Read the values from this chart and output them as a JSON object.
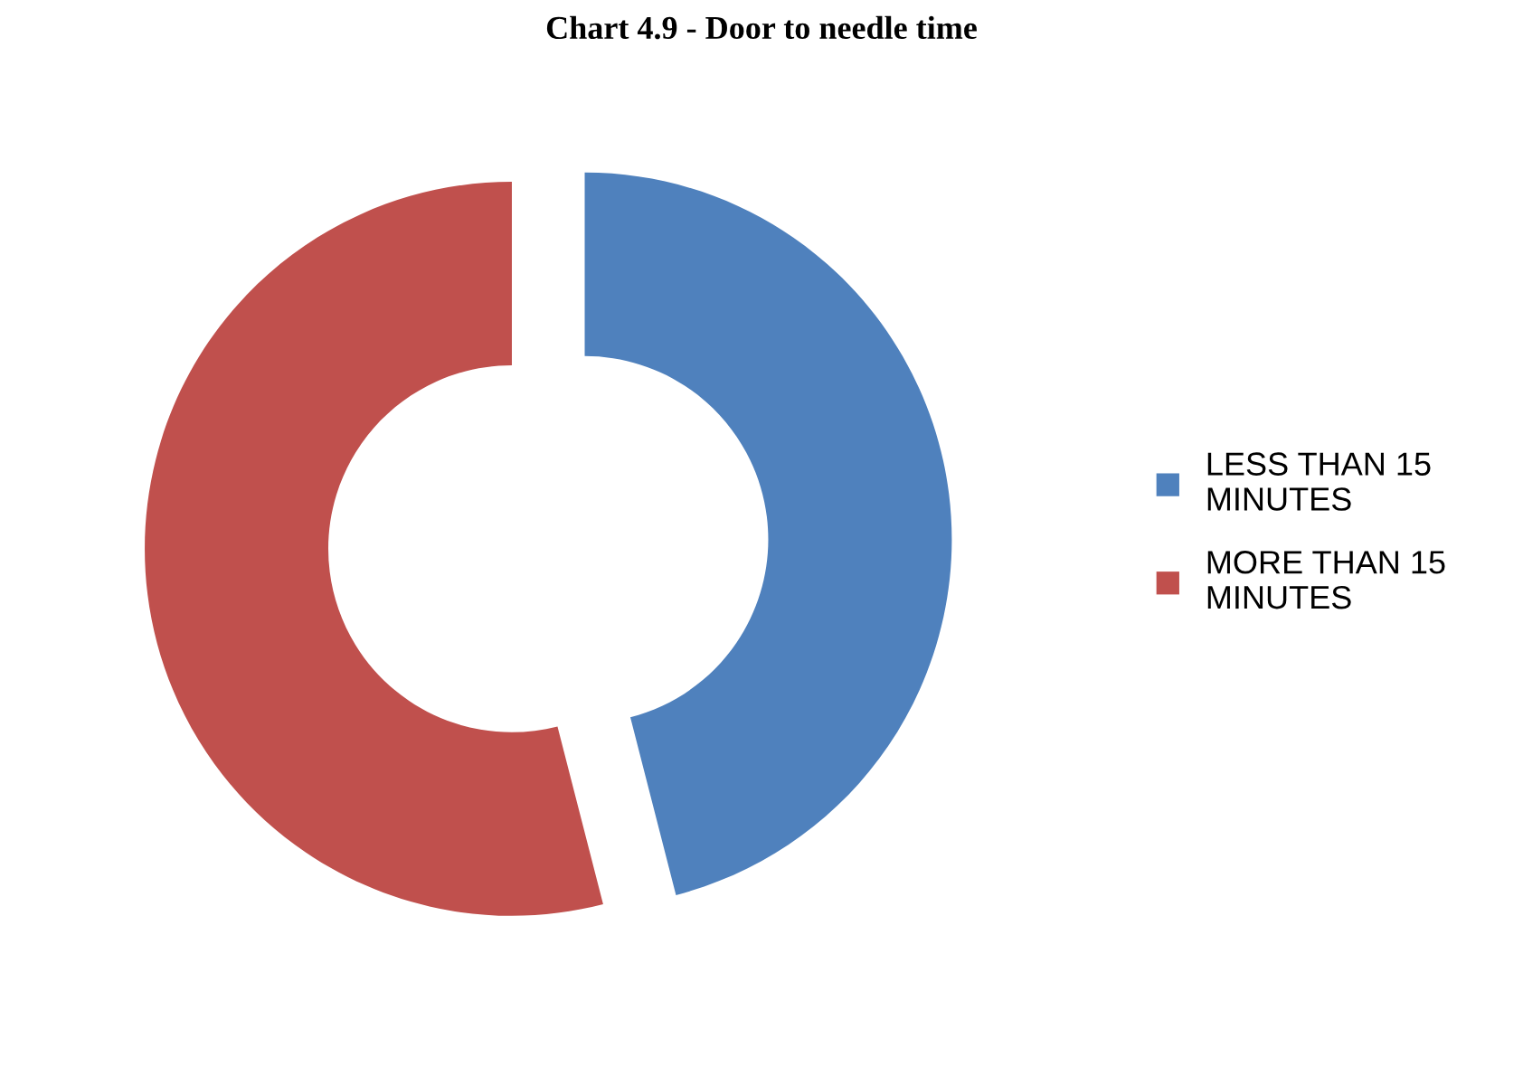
{
  "chart_data": {
    "type": "donut",
    "title": "Chart 4.9 - Door to needle time",
    "categories": [
      "LESS THAN 15 MINUTES",
      "MORE THAN 15 MINUTES"
    ],
    "values": [
      46,
      54
    ],
    "colors": [
      "#4f81bd",
      "#c0504d"
    ],
    "legend": "right"
  }
}
